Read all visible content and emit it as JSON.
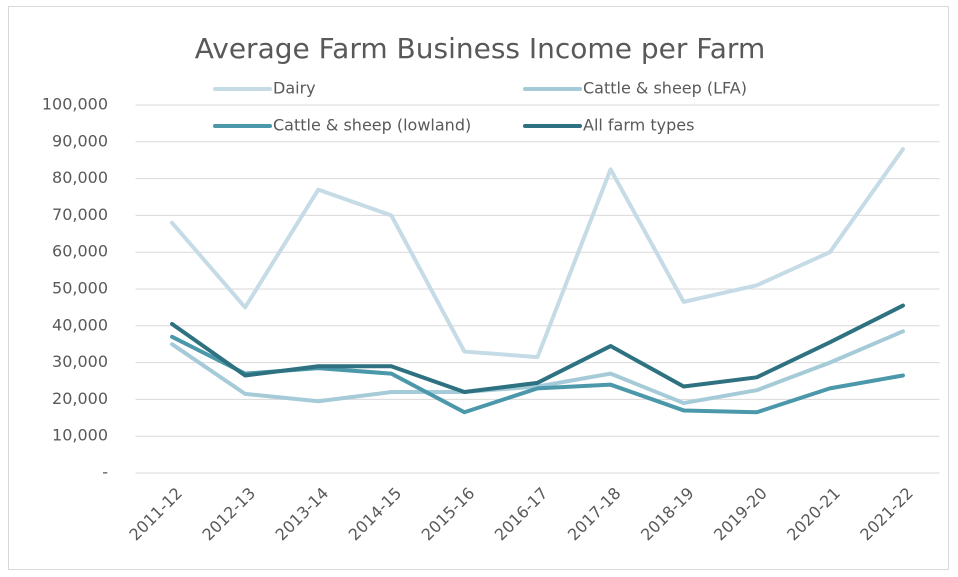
{
  "chart_data": {
    "type": "line",
    "title": "Average Farm Business Income per Farm",
    "categories": [
      "2011-12",
      "2012-13",
      "2013-14",
      "2014-15",
      "2015-16",
      "2016-17",
      "2017-18",
      "2018-19",
      "2019-20",
      "2020-21",
      "2021-22"
    ],
    "series": [
      {
        "name": "Dairy",
        "color": "#c5dbe6",
        "values": [
          68000,
          45000,
          77000,
          70000,
          33000,
          31500,
          82500,
          46500,
          51000,
          60000,
          88000
        ]
      },
      {
        "name": "Cattle & sheep (LFA)",
        "color": "#a6cbd8",
        "values": [
          35000,
          21500,
          19500,
          22000,
          22000,
          23500,
          27000,
          19000,
          22500,
          30000,
          38500
        ]
      },
      {
        "name": "Cattle & sheep (lowland)",
        "color": "#4a98a9",
        "values": [
          37000,
          27000,
          28500,
          27000,
          16500,
          23000,
          24000,
          17000,
          16500,
          23000,
          26500
        ]
      },
      {
        "name": "All farm types",
        "color": "#2e7180",
        "values": [
          40500,
          26500,
          29000,
          29000,
          22000,
          24500,
          34500,
          23500,
          26000,
          35500,
          45500
        ]
      }
    ],
    "ylim": [
      0,
      100000
    ],
    "yticks": [
      {
        "value": 0,
        "label": "-"
      },
      {
        "value": 10000,
        "label": "10,000"
      },
      {
        "value": 20000,
        "label": "20,000"
      },
      {
        "value": 30000,
        "label": "30,000"
      },
      {
        "value": 40000,
        "label": "40,000"
      },
      {
        "value": 50000,
        "label": "50,000"
      },
      {
        "value": 60000,
        "label": "60,000"
      },
      {
        "value": 70000,
        "label": "70,000"
      },
      {
        "value": 80000,
        "label": "80,000"
      },
      {
        "value": 90000,
        "label": "90,000"
      },
      {
        "value": 100000,
        "label": "100,000"
      }
    ],
    "grid": true,
    "legend": "top"
  }
}
